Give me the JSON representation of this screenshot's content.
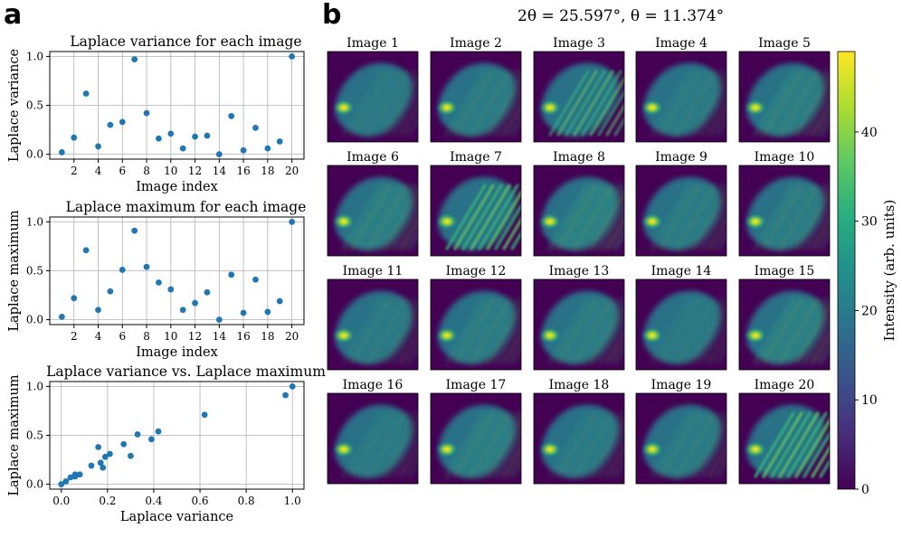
{
  "panel_a_letter": "a",
  "panel_b_letter": "b",
  "panel_b_title": "2θ = 25.597°, θ = 11.374°",
  "chart_data": [
    {
      "type": "scatter",
      "title": "Laplace variance for each image",
      "xlabel": "Image index",
      "ylabel": "Laplace variance",
      "x": [
        1,
        2,
        3,
        4,
        5,
        6,
        7,
        8,
        9,
        10,
        11,
        12,
        13,
        14,
        15,
        16,
        17,
        18,
        19,
        20
      ],
      "y": [
        0.02,
        0.17,
        0.62,
        0.08,
        0.3,
        0.33,
        0.97,
        0.42,
        0.16,
        0.21,
        0.06,
        0.18,
        0.19,
        0.0,
        0.39,
        0.04,
        0.27,
        0.06,
        0.13,
        1.0
      ],
      "xlim": [
        0.0,
        21.0
      ],
      "ylim": [
        -0.05,
        1.05
      ],
      "xticks": [
        2,
        4,
        6,
        8,
        10,
        12,
        14,
        16,
        18,
        20
      ],
      "yticks": [
        0.0,
        0.5,
        1.0
      ],
      "grid": true,
      "color": "#1f77b4"
    },
    {
      "type": "scatter",
      "title": "Laplace maximum for each image",
      "xlabel": "Image index",
      "ylabel": "Laplace maximum",
      "x": [
        1,
        2,
        3,
        4,
        5,
        6,
        7,
        8,
        9,
        10,
        11,
        12,
        13,
        14,
        15,
        16,
        17,
        18,
        19,
        20
      ],
      "y": [
        0.03,
        0.22,
        0.71,
        0.1,
        0.29,
        0.51,
        0.91,
        0.54,
        0.38,
        0.31,
        0.1,
        0.17,
        0.28,
        0.0,
        0.46,
        0.07,
        0.41,
        0.08,
        0.19,
        1.0
      ],
      "xlim": [
        0.0,
        21.0
      ],
      "ylim": [
        -0.05,
        1.05
      ],
      "xticks": [
        2,
        4,
        6,
        8,
        10,
        12,
        14,
        16,
        18,
        20
      ],
      "yticks": [
        0.0,
        0.5,
        1.0
      ],
      "grid": true,
      "color": "#1f77b4"
    },
    {
      "type": "scatter",
      "title": "Laplace variance vs. Laplace maximum",
      "xlabel": "Laplace variance",
      "ylabel": "Laplace maximum",
      "x": [
        0.02,
        0.17,
        0.62,
        0.08,
        0.3,
        0.33,
        0.97,
        0.42,
        0.16,
        0.21,
        0.06,
        0.18,
        0.19,
        0.0,
        0.39,
        0.04,
        0.27,
        0.06,
        0.13,
        1.0
      ],
      "y": [
        0.03,
        0.22,
        0.71,
        0.1,
        0.29,
        0.51,
        0.91,
        0.54,
        0.38,
        0.31,
        0.1,
        0.17,
        0.28,
        0.0,
        0.46,
        0.07,
        0.41,
        0.08,
        0.19,
        1.0
      ],
      "xlim": [
        -0.05,
        1.05
      ],
      "ylim": [
        -0.05,
        1.05
      ],
      "xticks": [
        0.0,
        0.2,
        0.4,
        0.6,
        0.8,
        1.0
      ],
      "yticks": [
        0.0,
        0.5,
        1.0
      ],
      "grid": true,
      "color": "#1f77b4"
    },
    {
      "type": "heatmap",
      "image_labels": [
        "Image 1",
        "Image 2",
        "Image 3",
        "Image 4",
        "Image 5",
        "Image 6",
        "Image 7",
        "Image 8",
        "Image 9",
        "Image 10",
        "Image 11",
        "Image 12",
        "Image 13",
        "Image 14",
        "Image 15",
        "Image 16",
        "Image 17",
        "Image 18",
        "Image 19",
        "Image 20"
      ],
      "image_sharpness": [
        0.02,
        0.17,
        0.62,
        0.08,
        0.3,
        0.33,
        0.97,
        0.42,
        0.16,
        0.21,
        0.06,
        0.18,
        0.19,
        0.0,
        0.39,
        0.04,
        0.27,
        0.06,
        0.13,
        1.0
      ],
      "colormap": "viridis",
      "colorbar_label": "Intensity (arb. units)",
      "colorbar_range": [
        0,
        49
      ],
      "colorbar_ticks": [
        0,
        10,
        20,
        30,
        40
      ]
    }
  ]
}
